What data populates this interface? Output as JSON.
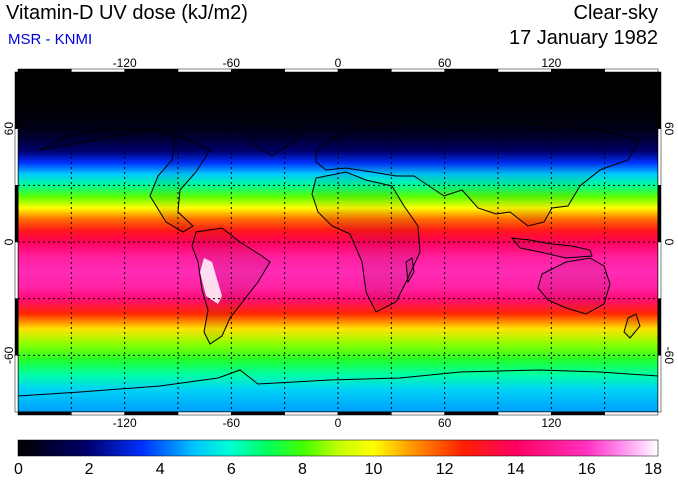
{
  "header": {
    "title": "Vitamin-D UV dose (kJ/m2)",
    "subtitle": "MSR - KNMI",
    "subtitle_color": "#0000dd",
    "condition": "Clear-sky",
    "date": "17 January 1982"
  },
  "map": {
    "projection": "equirectangular",
    "lon_range": [
      -180,
      180
    ],
    "lat_range": [
      -90,
      90
    ],
    "lon_ticks": [
      {
        "value": -120,
        "label": "-120"
      },
      {
        "value": -60,
        "label": "-60"
      },
      {
        "value": 0,
        "label": "0"
      },
      {
        "value": 60,
        "label": "60"
      },
      {
        "value": 120,
        "label": "120"
      }
    ],
    "lat_ticks": [
      {
        "value": 60,
        "label": "60"
      },
      {
        "value": 0,
        "label": "0"
      },
      {
        "value": -60,
        "label": "-60"
      }
    ],
    "grid_spacing_deg": 30,
    "grid": true,
    "coastlines": true
  },
  "colorbar": {
    "min": 0,
    "max": 18,
    "tick_labels": [
      "0",
      "2",
      "4",
      "6",
      "8",
      "10",
      "12",
      "14",
      "16",
      "18"
    ],
    "stops": [
      {
        "value": 0,
        "color": "#000000"
      },
      {
        "value": 2,
        "color": "#00006e"
      },
      {
        "value": 3.5,
        "color": "#0030ff"
      },
      {
        "value": 5,
        "color": "#00c8ff"
      },
      {
        "value": 6,
        "color": "#00ffd0"
      },
      {
        "value": 7,
        "color": "#00ff60"
      },
      {
        "value": 8,
        "color": "#40ff00"
      },
      {
        "value": 9,
        "color": "#c0ff00"
      },
      {
        "value": 10,
        "color": "#ffff00"
      },
      {
        "value": 11,
        "color": "#ffa000"
      },
      {
        "value": 12.5,
        "color": "#ff2000"
      },
      {
        "value": 14,
        "color": "#ff0060"
      },
      {
        "value": 16,
        "color": "#ff30c0"
      },
      {
        "value": 17,
        "color": "#ff90f0"
      },
      {
        "value": 18,
        "color": "#ffffff"
      }
    ]
  },
  "dose_by_latitude": [
    {
      "lat": 90,
      "value": 0
    },
    {
      "lat": 75,
      "value": 0
    },
    {
      "lat": 62,
      "value": 0.3
    },
    {
      "lat": 55,
      "value": 0.9
    },
    {
      "lat": 48,
      "value": 2.0
    },
    {
      "lat": 42,
      "value": 3.5
    },
    {
      "lat": 36,
      "value": 5.0
    },
    {
      "lat": 30,
      "value": 6.5
    },
    {
      "lat": 24,
      "value": 8.2
    },
    {
      "lat": 18,
      "value": 10.0
    },
    {
      "lat": 12,
      "value": 11.6
    },
    {
      "lat": 6,
      "value": 12.9
    },
    {
      "lat": 0,
      "value": 13.9
    },
    {
      "lat": -8,
      "value": 15.3
    },
    {
      "lat": -16,
      "value": 15.8
    },
    {
      "lat": -24,
      "value": 15.4
    },
    {
      "lat": -30,
      "value": 14.5
    },
    {
      "lat": -38,
      "value": 12.4
    },
    {
      "lat": -46,
      "value": 10.3
    },
    {
      "lat": -54,
      "value": 8.6
    },
    {
      "lat": -62,
      "value": 7.6
    },
    {
      "lat": -70,
      "value": 6.4
    },
    {
      "lat": -78,
      "value": 5.2
    },
    {
      "lat": -90,
      "value": 4.6
    }
  ]
}
